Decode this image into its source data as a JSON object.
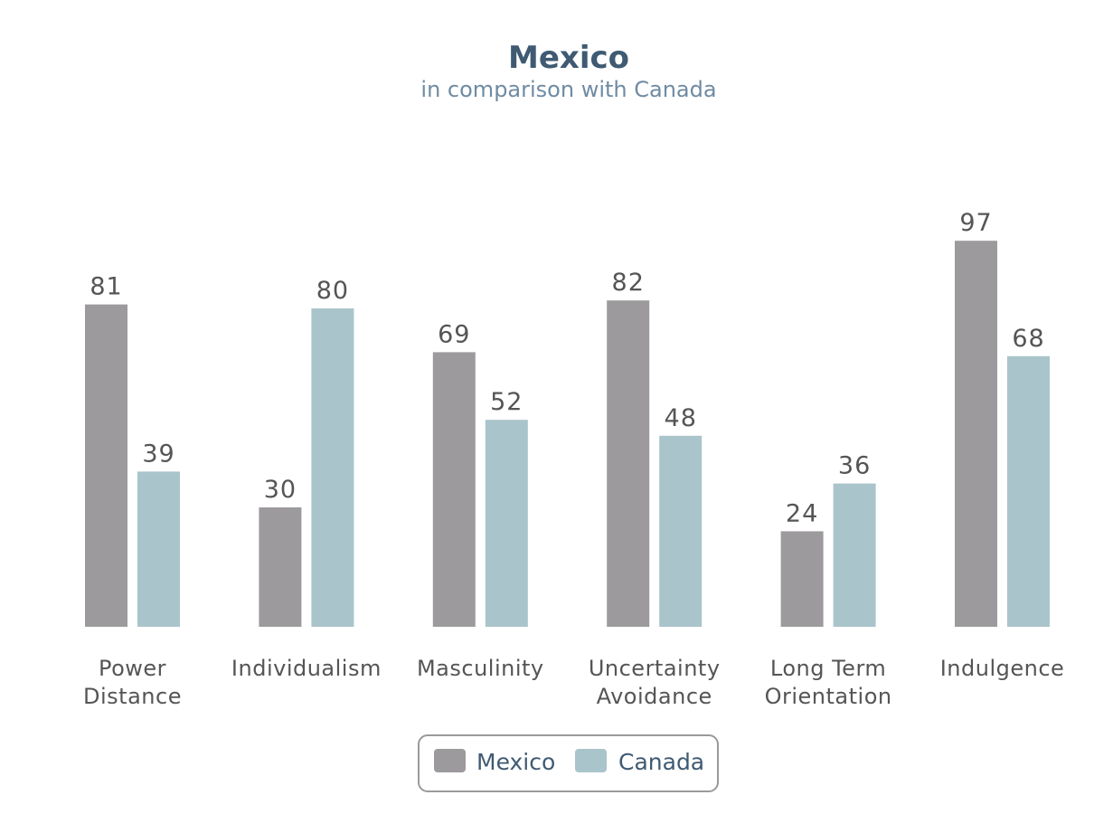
{
  "chart_data": {
    "type": "bar",
    "title": "Mexico",
    "subtitle": "in comparison with Canada",
    "categories": [
      [
        "Power",
        "Distance"
      ],
      [
        "Individualism"
      ],
      [
        "Masculinity"
      ],
      [
        "Uncertainty",
        "Avoidance"
      ],
      [
        "Long Term",
        "Orientation"
      ],
      [
        "Indulgence"
      ]
    ],
    "series": [
      {
        "name": "Mexico",
        "color": "#9c9a9d",
        "values": [
          81,
          30,
          69,
          82,
          24,
          97
        ]
      },
      {
        "name": "Canada",
        "color": "#aac4cb",
        "values": [
          39,
          80,
          52,
          48,
          36,
          68
        ]
      }
    ],
    "ylim": [
      0,
      100
    ],
    "grid": false,
    "legend_position": "bottom-center"
  }
}
